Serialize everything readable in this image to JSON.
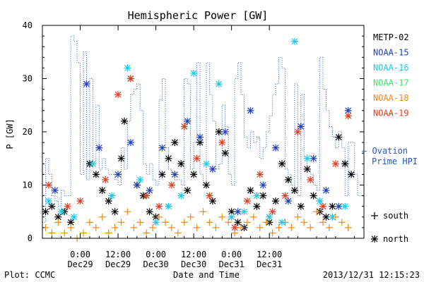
{
  "chart_data": {
    "type": "scatter",
    "title": "Hemispheric Power [GW]",
    "ylabel": "P [GW]",
    "xlabel": "Date and Time",
    "ylim": [
      0,
      40
    ],
    "xlim": [
      0,
      102
    ],
    "x_units": "hours since 2013-12-28 12:00",
    "yticks": [
      0,
      10,
      20,
      30,
      40
    ],
    "xticks": [
      {
        "x": 12,
        "time": "0:00",
        "date": "Dec29"
      },
      {
        "x": 24,
        "time": "12:00",
        "date": "Dec29"
      },
      {
        "x": 36,
        "time": "0:00",
        "date": "Dec30"
      },
      {
        "x": 48,
        "time": "12:00",
        "date": "Dec30"
      },
      {
        "x": 60,
        "time": "0:00",
        "date": "Dec31"
      },
      {
        "x": 72,
        "time": "12:00",
        "date": "Dec31"
      }
    ],
    "legend": [
      {
        "name": "METP-02",
        "color": "#000000"
      },
      {
        "name": "NOAA-15",
        "color": "#1f3fbf"
      },
      {
        "name": "NOAA-16",
        "color": "#1ec8e6"
      },
      {
        "name": "NOAA-17",
        "color": "#3ee36a"
      },
      {
        "name": "NOAA-18",
        "color": "#ee8a1a"
      },
      {
        "name": "NOAA-19",
        "color": "#e23a1e"
      }
    ],
    "ovation": {
      "label_line1": "– Ovation",
      "label_line2": "Prime HPI",
      "color": "#2856c8",
      "x": [
        0,
        1,
        2,
        3,
        4,
        5,
        6,
        7,
        8,
        9,
        10,
        11,
        12,
        13,
        14,
        15,
        16,
        17,
        18,
        19,
        20,
        21,
        22,
        23,
        24,
        25,
        26,
        27,
        28,
        29,
        30,
        31,
        32,
        33,
        34,
        35,
        36,
        37,
        38,
        39,
        40,
        41,
        42,
        43,
        44,
        45,
        46,
        47,
        48,
        49,
        50,
        51,
        52,
        53,
        54,
        55,
        56,
        57,
        58,
        59,
        60,
        61,
        62,
        63,
        64,
        65,
        66,
        67,
        68,
        69,
        70,
        71,
        72,
        73,
        74,
        75,
        76,
        77,
        78,
        79,
        80,
        81,
        82,
        83,
        84,
        85,
        86,
        87,
        88,
        89,
        90,
        91,
        92,
        93,
        94,
        95,
        96,
        97,
        98,
        99,
        100,
        101,
        102
      ],
      "y": [
        3,
        15,
        12,
        8,
        7,
        6,
        9,
        8,
        8,
        38,
        37,
        33,
        12,
        35,
        11,
        30,
        14,
        25,
        13,
        15,
        13,
        12,
        12,
        11,
        10,
        17,
        13,
        22,
        27,
        28,
        29,
        24,
        14,
        12,
        14,
        11,
        10,
        26,
        30,
        17,
        13,
        12,
        11,
        11,
        10,
        30,
        29,
        13,
        18,
        33,
        12,
        10,
        33,
        27,
        22,
        13,
        14,
        25,
        21,
        12,
        10,
        30,
        33,
        27,
        19,
        17,
        20,
        18,
        19,
        15,
        17,
        20,
        23,
        27,
        29,
        34,
        32,
        13,
        12,
        10,
        29,
        8,
        27,
        15,
        13,
        12,
        10,
        9,
        34,
        28,
        24,
        21,
        19,
        17,
        20,
        17,
        8,
        18,
        18,
        12,
        8,
        8,
        8
      ]
    },
    "series": [
      {
        "name": "METP-02",
        "marker": "*",
        "color": "#000000",
        "x": [
          1,
          3,
          5,
          7,
          9,
          15,
          17,
          19,
          21,
          23,
          25,
          26,
          28,
          30,
          32,
          34,
          36,
          38,
          40,
          42,
          44,
          46,
          48,
          50,
          52,
          54,
          56,
          58,
          60,
          62,
          64,
          66,
          68,
          70,
          72,
          74,
          76,
          78,
          80,
          82,
          84,
          86,
          88,
          90,
          92,
          94,
          96,
          98
        ],
        "y": [
          5,
          6,
          4,
          5,
          3,
          14,
          12,
          9,
          7,
          5,
          15,
          22,
          30,
          10,
          8,
          5,
          4,
          12,
          15,
          18,
          14,
          9,
          12,
          18,
          10,
          7,
          20,
          16,
          5,
          3,
          2,
          9,
          6,
          8,
          3,
          7,
          14,
          11,
          9,
          6,
          13,
          8,
          5,
          4,
          6,
          19,
          14,
          12
        ]
      },
      {
        "name": "NOAA-15",
        "marker": "*",
        "color": "#1f3fbf",
        "x": [
          4,
          14,
          18,
          24,
          28,
          30,
          34,
          38,
          42,
          46,
          50,
          54,
          58,
          62,
          66,
          70,
          74,
          78,
          82,
          86,
          90,
          94,
          97
        ],
        "y": [
          9,
          29,
          17,
          12,
          18,
          10,
          9,
          17,
          12,
          22,
          19,
          13,
          20,
          5,
          24,
          10,
          17,
          7,
          21,
          15,
          9,
          6,
          24
        ]
      },
      {
        "name": "NOAA-16",
        "marker": "*",
        "color": "#1ec8e6",
        "x": [
          2,
          6,
          10,
          16,
          22,
          27,
          31,
          36,
          40,
          44,
          48,
          52,
          56,
          60,
          64,
          68,
          72,
          76,
          80,
          84,
          88,
          92,
          96
        ],
        "y": [
          7,
          5,
          4,
          14,
          8,
          32,
          11,
          3,
          6,
          8,
          31,
          14,
          29,
          4,
          5,
          8,
          4,
          3,
          37,
          15,
          7,
          4,
          6
        ]
      },
      {
        "name": "NOAA-17",
        "marker": "*",
        "color": "#3ee36a",
        "x": [],
        "y": []
      },
      {
        "name": "NOAA-18",
        "marker": "+",
        "color": "#ee8a1a",
        "x": [
          1,
          3,
          5,
          7,
          9,
          11,
          13,
          15,
          17,
          19,
          21,
          23,
          25,
          27,
          29,
          31,
          33,
          35,
          37,
          39,
          41,
          43,
          45,
          47,
          49,
          51,
          53,
          55,
          57,
          59,
          61,
          63,
          65,
          67,
          69,
          71,
          73,
          75,
          77,
          79,
          81,
          83,
          85,
          87,
          89,
          91,
          93,
          95,
          97
        ],
        "y": [
          2,
          1,
          3,
          1,
          2,
          0,
          1,
          3,
          2,
          4,
          1,
          2,
          3,
          5,
          2,
          3,
          1,
          2,
          4,
          3,
          2,
          1,
          3,
          4,
          2,
          5,
          3,
          2,
          4,
          3,
          1,
          2,
          3,
          4,
          2,
          3,
          1,
          2,
          3,
          2,
          4,
          3,
          2,
          5,
          3,
          2,
          4,
          3,
          2
        ]
      },
      {
        "name": "NOAA-19",
        "marker": "*",
        "color": "#e23a1e",
        "x": [
          2,
          8,
          12,
          20,
          24,
          28,
          33,
          37,
          41,
          45,
          49,
          53,
          57,
          61,
          65,
          69,
          73,
          77,
          81,
          85,
          89,
          93,
          97
        ],
        "y": [
          10,
          6,
          7,
          11,
          27,
          30,
          8,
          6,
          10,
          21,
          15,
          8,
          18,
          2,
          7,
          12,
          5,
          8,
          20,
          11,
          6,
          14,
          23
        ]
      }
    ],
    "marker_legend": [
      {
        "marker": "+",
        "label": "south"
      },
      {
        "marker": "*",
        "label": "north"
      }
    ]
  },
  "footer": {
    "left": "Plot: CCMC",
    "center": "Date and Time",
    "right": "2013/12/31 12:15:23"
  }
}
